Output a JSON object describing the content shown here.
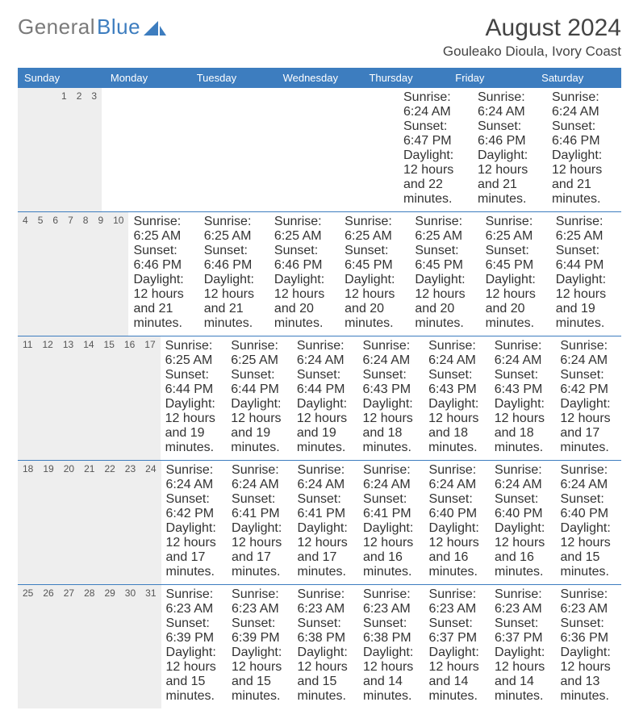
{
  "logo": {
    "text_gray": "General",
    "text_blue": "Blue",
    "accent_color": "#3d7dbf"
  },
  "title": "August 2024",
  "location": "Gouleako Dioula, Ivory Coast",
  "weekdays": [
    "Sunday",
    "Monday",
    "Tuesday",
    "Wednesday",
    "Thursday",
    "Friday",
    "Saturday"
  ],
  "colors": {
    "header_bar": "#3d7dbf",
    "daynum_bg": "#eeeeee",
    "text": "#333333",
    "title_text": "#444444",
    "rule": "#3d7dbf"
  },
  "fonts": {
    "title_pt": 30,
    "location_pt": 17,
    "weekday_pt": 13,
    "daynum_pt": 12,
    "body_pt": 10.5
  },
  "weeks": [
    [
      {
        "n": "",
        "sr": "",
        "ss": "",
        "dl": ""
      },
      {
        "n": "",
        "sr": "",
        "ss": "",
        "dl": ""
      },
      {
        "n": "",
        "sr": "",
        "ss": "",
        "dl": ""
      },
      {
        "n": "",
        "sr": "",
        "ss": "",
        "dl": ""
      },
      {
        "n": "1",
        "sr": "Sunrise: 6:24 AM",
        "ss": "Sunset: 6:47 PM",
        "dl": "Daylight: 12 hours and 22 minutes."
      },
      {
        "n": "2",
        "sr": "Sunrise: 6:24 AM",
        "ss": "Sunset: 6:46 PM",
        "dl": "Daylight: 12 hours and 21 minutes."
      },
      {
        "n": "3",
        "sr": "Sunrise: 6:24 AM",
        "ss": "Sunset: 6:46 PM",
        "dl": "Daylight: 12 hours and 21 minutes."
      }
    ],
    [
      {
        "n": "4",
        "sr": "Sunrise: 6:25 AM",
        "ss": "Sunset: 6:46 PM",
        "dl": "Daylight: 12 hours and 21 minutes."
      },
      {
        "n": "5",
        "sr": "Sunrise: 6:25 AM",
        "ss": "Sunset: 6:46 PM",
        "dl": "Daylight: 12 hours and 21 minutes."
      },
      {
        "n": "6",
        "sr": "Sunrise: 6:25 AM",
        "ss": "Sunset: 6:46 PM",
        "dl": "Daylight: 12 hours and 20 minutes."
      },
      {
        "n": "7",
        "sr": "Sunrise: 6:25 AM",
        "ss": "Sunset: 6:45 PM",
        "dl": "Daylight: 12 hours and 20 minutes."
      },
      {
        "n": "8",
        "sr": "Sunrise: 6:25 AM",
        "ss": "Sunset: 6:45 PM",
        "dl": "Daylight: 12 hours and 20 minutes."
      },
      {
        "n": "9",
        "sr": "Sunrise: 6:25 AM",
        "ss": "Sunset: 6:45 PM",
        "dl": "Daylight: 12 hours and 20 minutes."
      },
      {
        "n": "10",
        "sr": "Sunrise: 6:25 AM",
        "ss": "Sunset: 6:44 PM",
        "dl": "Daylight: 12 hours and 19 minutes."
      }
    ],
    [
      {
        "n": "11",
        "sr": "Sunrise: 6:25 AM",
        "ss": "Sunset: 6:44 PM",
        "dl": "Daylight: 12 hours and 19 minutes."
      },
      {
        "n": "12",
        "sr": "Sunrise: 6:25 AM",
        "ss": "Sunset: 6:44 PM",
        "dl": "Daylight: 12 hours and 19 minutes."
      },
      {
        "n": "13",
        "sr": "Sunrise: 6:24 AM",
        "ss": "Sunset: 6:44 PM",
        "dl": "Daylight: 12 hours and 19 minutes."
      },
      {
        "n": "14",
        "sr": "Sunrise: 6:24 AM",
        "ss": "Sunset: 6:43 PM",
        "dl": "Daylight: 12 hours and 18 minutes."
      },
      {
        "n": "15",
        "sr": "Sunrise: 6:24 AM",
        "ss": "Sunset: 6:43 PM",
        "dl": "Daylight: 12 hours and 18 minutes."
      },
      {
        "n": "16",
        "sr": "Sunrise: 6:24 AM",
        "ss": "Sunset: 6:43 PM",
        "dl": "Daylight: 12 hours and 18 minutes."
      },
      {
        "n": "17",
        "sr": "Sunrise: 6:24 AM",
        "ss": "Sunset: 6:42 PM",
        "dl": "Daylight: 12 hours and 17 minutes."
      }
    ],
    [
      {
        "n": "18",
        "sr": "Sunrise: 6:24 AM",
        "ss": "Sunset: 6:42 PM",
        "dl": "Daylight: 12 hours and 17 minutes."
      },
      {
        "n": "19",
        "sr": "Sunrise: 6:24 AM",
        "ss": "Sunset: 6:41 PM",
        "dl": "Daylight: 12 hours and 17 minutes."
      },
      {
        "n": "20",
        "sr": "Sunrise: 6:24 AM",
        "ss": "Sunset: 6:41 PM",
        "dl": "Daylight: 12 hours and 17 minutes."
      },
      {
        "n": "21",
        "sr": "Sunrise: 6:24 AM",
        "ss": "Sunset: 6:41 PM",
        "dl": "Daylight: 12 hours and 16 minutes."
      },
      {
        "n": "22",
        "sr": "Sunrise: 6:24 AM",
        "ss": "Sunset: 6:40 PM",
        "dl": "Daylight: 12 hours and 16 minutes."
      },
      {
        "n": "23",
        "sr": "Sunrise: 6:24 AM",
        "ss": "Sunset: 6:40 PM",
        "dl": "Daylight: 12 hours and 16 minutes."
      },
      {
        "n": "24",
        "sr": "Sunrise: 6:24 AM",
        "ss": "Sunset: 6:40 PM",
        "dl": "Daylight: 12 hours and 15 minutes."
      }
    ],
    [
      {
        "n": "25",
        "sr": "Sunrise: 6:23 AM",
        "ss": "Sunset: 6:39 PM",
        "dl": "Daylight: 12 hours and 15 minutes."
      },
      {
        "n": "26",
        "sr": "Sunrise: 6:23 AM",
        "ss": "Sunset: 6:39 PM",
        "dl": "Daylight: 12 hours and 15 minutes."
      },
      {
        "n": "27",
        "sr": "Sunrise: 6:23 AM",
        "ss": "Sunset: 6:38 PM",
        "dl": "Daylight: 12 hours and 15 minutes."
      },
      {
        "n": "28",
        "sr": "Sunrise: 6:23 AM",
        "ss": "Sunset: 6:38 PM",
        "dl": "Daylight: 12 hours and 14 minutes."
      },
      {
        "n": "29",
        "sr": "Sunrise: 6:23 AM",
        "ss": "Sunset: 6:37 PM",
        "dl": "Daylight: 12 hours and 14 minutes."
      },
      {
        "n": "30",
        "sr": "Sunrise: 6:23 AM",
        "ss": "Sunset: 6:37 PM",
        "dl": "Daylight: 12 hours and 14 minutes."
      },
      {
        "n": "31",
        "sr": "Sunrise: 6:23 AM",
        "ss": "Sunset: 6:36 PM",
        "dl": "Daylight: 12 hours and 13 minutes."
      }
    ]
  ]
}
